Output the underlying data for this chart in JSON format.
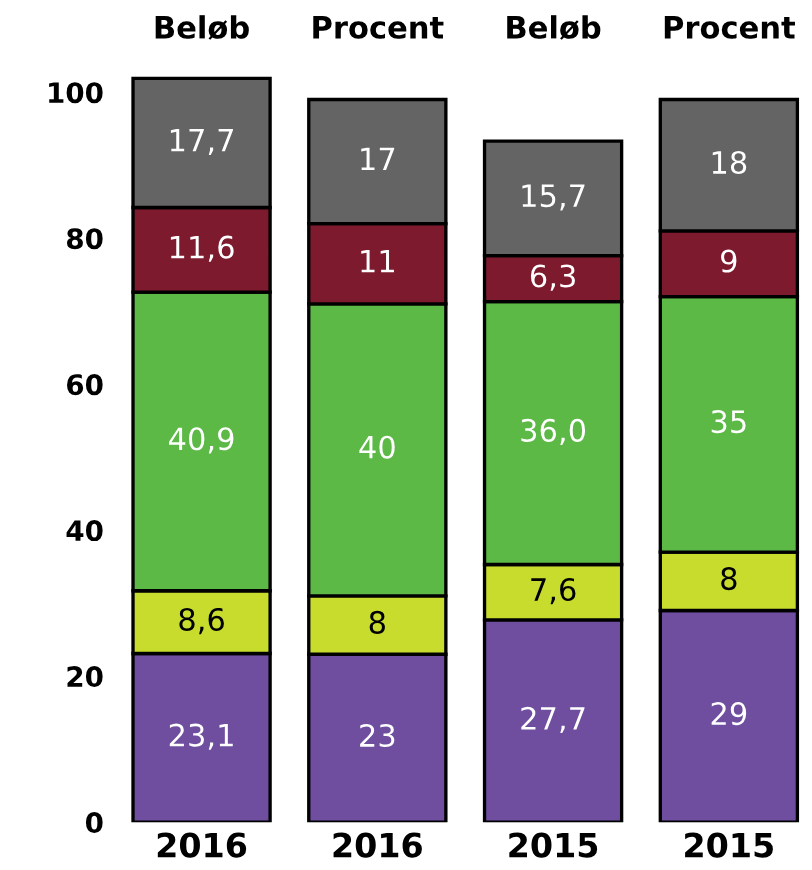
{
  "chart_data": {
    "type": "bar",
    "stacked": true,
    "categories": [
      "2016",
      "2016",
      "2015",
      "2015"
    ],
    "annotations": [
      "Beløb",
      "Procent",
      "Beløb",
      "Procent"
    ],
    "ylim": [
      0,
      102.5
    ],
    "yticks": [
      0,
      20,
      40,
      60,
      80,
      100
    ],
    "grid": false,
    "legend": false,
    "series": [
      {
        "color": "#6f4ea0",
        "values": [
          23.1,
          23,
          27.7,
          29
        ],
        "value_labels": [
          "23,1",
          "23",
          "27,7",
          "29"
        ]
      },
      {
        "color": "#c8dc2e",
        "values": [
          8.6,
          8,
          7.6,
          8
        ],
        "value_labels": [
          "8,6",
          "8",
          "7,6",
          "8"
        ]
      },
      {
        "color": "#5cb946",
        "values": [
          40.9,
          40,
          36.0,
          35
        ],
        "value_labels": [
          "40,9",
          "40",
          "36,0",
          "35"
        ]
      },
      {
        "color": "#7d1a2e",
        "values": [
          11.6,
          11,
          6.3,
          9
        ],
        "value_labels": [
          "11,6",
          "11",
          "6,3",
          "9"
        ]
      },
      {
        "color": "#646464",
        "values": [
          17.7,
          17,
          15.7,
          18
        ],
        "value_labels": [
          "17,7",
          "17",
          "15,7",
          "18"
        ]
      }
    ]
  }
}
